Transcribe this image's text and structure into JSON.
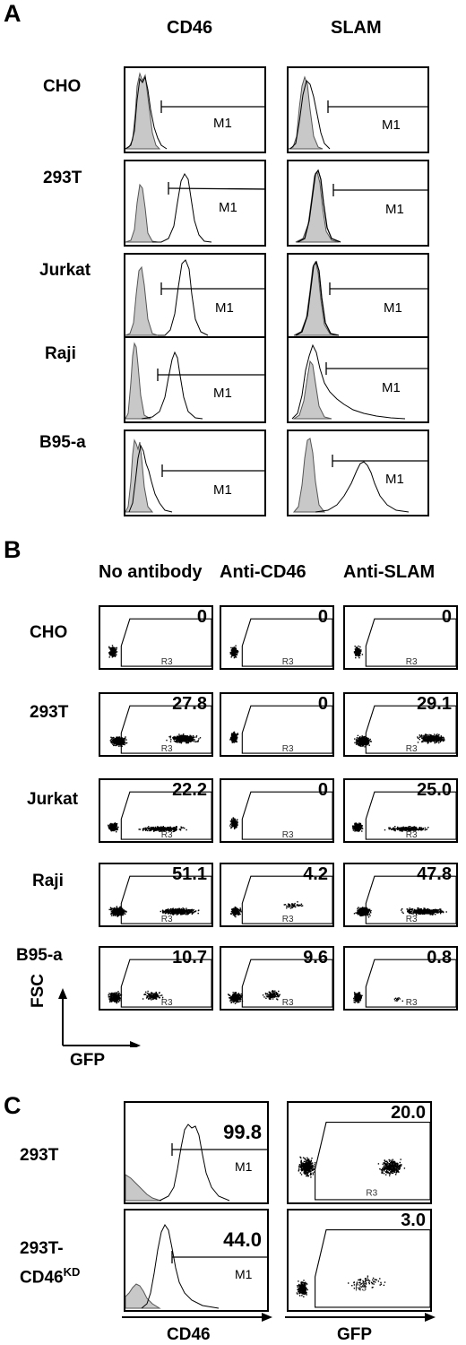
{
  "panel_a": {
    "letter": "A",
    "columns": [
      "CD46",
      "SLAM"
    ],
    "rows": [
      "CHO",
      "293T",
      "Jurkat",
      "Raji",
      "B95-a"
    ],
    "marker_label": "M1"
  },
  "panel_b": {
    "letter": "B",
    "columns": [
      "No antibody",
      "Anti-CD46",
      "Anti-SLAM"
    ],
    "rows": [
      "CHO",
      "293T",
      "Jurkat",
      "Raji",
      "B95-a"
    ],
    "gate_label": "R3",
    "values": [
      [
        "0",
        "0",
        "0"
      ],
      [
        "27.8",
        "0",
        "29.1"
      ],
      [
        "22.2",
        "0",
        "25.0"
      ],
      [
        "51.1",
        "4.2",
        "47.8"
      ],
      [
        "10.7",
        "9.6",
        "0.8"
      ]
    ],
    "y_axis": "FSC",
    "x_axis": "GFP"
  },
  "panel_c": {
    "letter": "C",
    "row1": "293T",
    "row2_main": "293T-",
    "row2_base": "CD46",
    "row2_sup": "KD",
    "hist_values": [
      "99.8",
      "44.0"
    ],
    "dot_values": [
      "20.0",
      "3.0"
    ],
    "marker_label": "M1",
    "gate_label": "R3",
    "x_axis_left": "CD46",
    "x_axis_right": "GFP"
  }
}
